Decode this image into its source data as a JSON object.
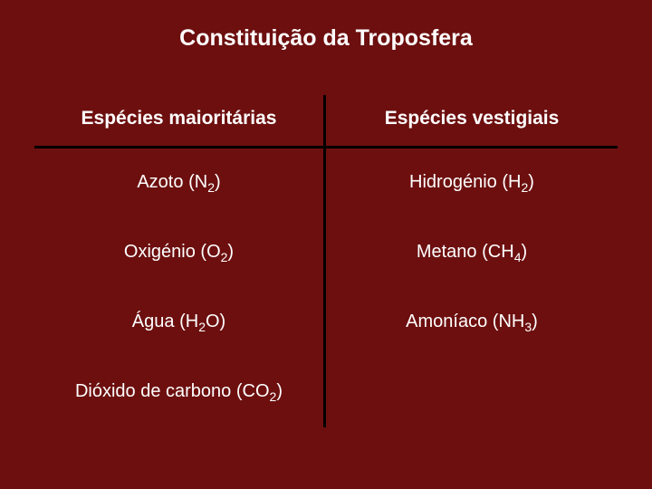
{
  "slide": {
    "title": "Constituição da Troposfera",
    "background_color": "#6d0f0f",
    "title_color": "#ffffff",
    "title_fontsize": 25,
    "title_fontweight": "bold",
    "divider_color": "#000000",
    "divider_width": 3
  },
  "table": {
    "type": "table",
    "columns": [
      {
        "label": "Espécies maioritárias",
        "fontsize": 21,
        "fontweight": "bold",
        "color": "#ffffff"
      },
      {
        "label": "Espécies vestigiais",
        "fontsize": 21,
        "fontweight": "bold",
        "color": "#ffffff"
      }
    ],
    "row_fontsize": 20,
    "row_color": "#ffffff",
    "rows": [
      {
        "left": {
          "name": "Azoto",
          "formula_base": "N",
          "formula_sub": "2",
          "suffix": ""
        },
        "right": {
          "name": "Hidrogénio",
          "formula_base": "H",
          "formula_sub": "2",
          "suffix": ""
        }
      },
      {
        "left": {
          "name": "Oxigénio",
          "formula_base": "O",
          "formula_sub": "2",
          "suffix": ""
        },
        "right": {
          "name": "Metano",
          "formula_base": "CH",
          "formula_sub": "4",
          "suffix": ""
        }
      },
      {
        "left": {
          "name": "Água",
          "formula_base": "H",
          "formula_sub": "2",
          "suffix": "O"
        },
        "right": {
          "name": "Amoníaco",
          "formula_base": "NH",
          "formula_sub": "3",
          "suffix": ""
        }
      },
      {
        "left": {
          "name": "Dióxido de carbono",
          "formula_base": "CO",
          "formula_sub": "2",
          "suffix": ""
        },
        "right": null
      }
    ]
  }
}
